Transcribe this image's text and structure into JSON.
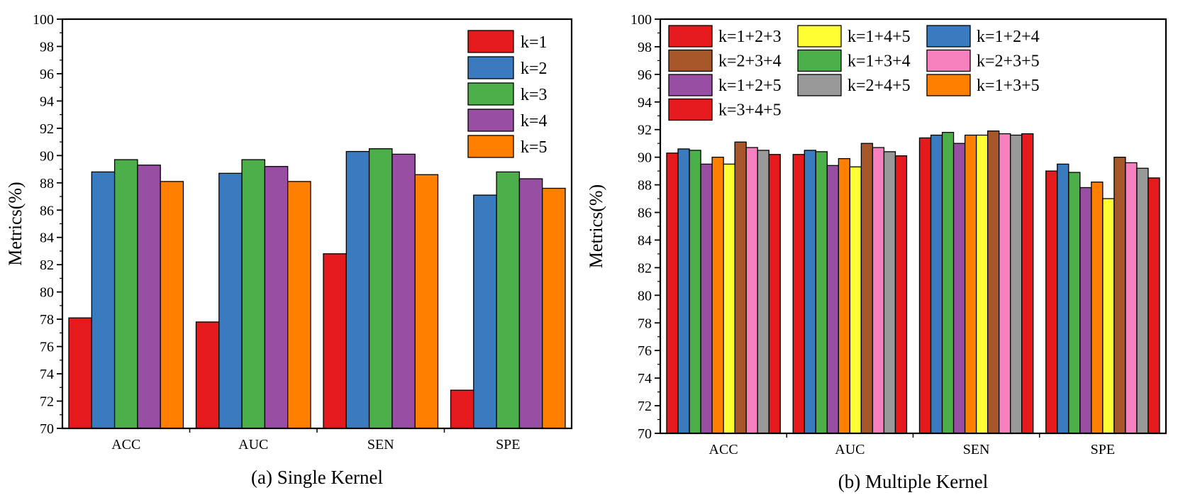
{
  "chart_data": [
    {
      "type": "bar",
      "caption": "(a) Single Kernel",
      "ylabel": "Metrics(%)",
      "xlabel": "",
      "ylim": [
        70,
        100
      ],
      "yticks": [
        70,
        72,
        74,
        76,
        78,
        80,
        82,
        84,
        86,
        88,
        90,
        92,
        94,
        96,
        98,
        100
      ],
      "grid": false,
      "legend_position": "top-right",
      "legend_columns": 1,
      "categories": [
        "ACC",
        "AUC",
        "SEN",
        "SPE"
      ],
      "series": [
        {
          "name": "k=1",
          "color": "#e41a1c",
          "values": [
            78.1,
            77.8,
            82.8,
            72.8
          ]
        },
        {
          "name": "k=2",
          "color": "#3a7bbf",
          "values": [
            88.8,
            88.7,
            90.3,
            87.1
          ]
        },
        {
          "name": "k=3",
          "color": "#4daf4a",
          "values": [
            89.7,
            89.7,
            90.5,
            88.8
          ]
        },
        {
          "name": "k=4",
          "color": "#984ea3",
          "values": [
            89.3,
            89.2,
            90.1,
            88.3
          ]
        },
        {
          "name": "k=5",
          "color": "#ff7f00",
          "values": [
            88.1,
            88.1,
            88.6,
            87.6
          ]
        }
      ]
    },
    {
      "type": "bar",
      "caption": "(b) Multiple Kernel",
      "ylabel": "Metrics(%)",
      "xlabel": "",
      "ylim": [
        70,
        100
      ],
      "yticks": [
        70,
        72,
        74,
        76,
        78,
        80,
        82,
        84,
        86,
        88,
        90,
        92,
        94,
        96,
        98,
        100
      ],
      "grid": false,
      "legend_position": "top",
      "legend_columns": 3,
      "categories": [
        "ACC",
        "AUC",
        "SEN",
        "SPE"
      ],
      "series": [
        {
          "name": "k=1+2+3",
          "color": "#e41a1c",
          "values": [
            90.3,
            90.2,
            91.4,
            89.0
          ]
        },
        {
          "name": "k=1+2+4",
          "color": "#3a7bbf",
          "values": [
            90.6,
            90.5,
            91.6,
            89.5
          ]
        },
        {
          "name": "k=1+3+4",
          "color": "#4daf4a",
          "values": [
            90.5,
            90.4,
            91.8,
            88.9
          ]
        },
        {
          "name": "k=1+2+5",
          "color": "#984ea3",
          "values": [
            89.5,
            89.4,
            91.0,
            87.8
          ]
        },
        {
          "name": "k=1+3+5",
          "color": "#ff7f00",
          "values": [
            90.0,
            89.9,
            91.6,
            88.2
          ]
        },
        {
          "name": "k=1+4+5",
          "color": "#ffff33",
          "values": [
            89.5,
            89.3,
            91.6,
            87.0
          ]
        },
        {
          "name": "k=2+3+4",
          "color": "#a65628",
          "values": [
            91.1,
            91.0,
            91.9,
            90.0
          ]
        },
        {
          "name": "k=2+3+5",
          "color": "#f781bf",
          "values": [
            90.7,
            90.7,
            91.7,
            89.6
          ]
        },
        {
          "name": "k=2+4+5",
          "color": "#999999",
          "values": [
            90.5,
            90.4,
            91.6,
            89.2
          ]
        },
        {
          "name": "k=3+4+5",
          "color": "#e41a1c",
          "values": [
            90.2,
            90.1,
            91.7,
            88.5
          ]
        }
      ],
      "legend_order": [
        "k=1+2+3",
        "k=1+4+5",
        "k=1+2+4",
        "k=2+3+4",
        "k=1+3+4",
        "k=2+3+5",
        "k=1+2+5",
        "k=2+4+5",
        "k=1+3+5",
        "k=3+4+5"
      ]
    }
  ]
}
